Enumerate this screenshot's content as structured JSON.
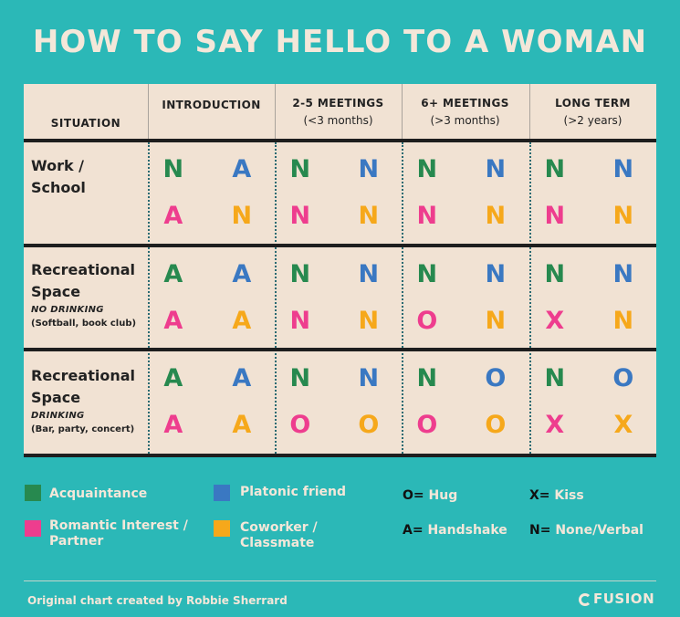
{
  "chart_data": {
    "type": "table",
    "title": "HOW TO SAY HELLO TO A WOMAN",
    "situation_header": "SITUATION",
    "columns": [
      {
        "label": "INTRODUCTION",
        "sub": ""
      },
      {
        "label": "2-5 MEETINGS",
        "sub": "(<3 months)"
      },
      {
        "label": "6+ MEETINGS",
        "sub": "(>3 months)"
      },
      {
        "label": "LONG TERM",
        "sub": "(>2 years)"
      }
    ],
    "rows": [
      {
        "label_lines": [
          "Work /",
          "School"
        ],
        "note1": "",
        "note2": "",
        "cells": [
          [
            "N",
            "A",
            "A",
            "N"
          ],
          [
            "N",
            "N",
            "N",
            "N"
          ],
          [
            "N",
            "N",
            "N",
            "N"
          ],
          [
            "N",
            "N",
            "N",
            "N"
          ]
        ]
      },
      {
        "label_lines": [
          "Recreational",
          "Space"
        ],
        "note1": "NO DRINKING",
        "note2": "(Softball, book club)",
        "cells": [
          [
            "A",
            "A",
            "A",
            "A"
          ],
          [
            "N",
            "N",
            "N",
            "N"
          ],
          [
            "N",
            "N",
            "O",
            "N"
          ],
          [
            "N",
            "N",
            "X",
            "N"
          ]
        ]
      },
      {
        "label_lines": [
          "Recreational",
          "Space"
        ],
        "note1": "DRINKING",
        "note2": "(Bar, party, concert)",
        "cells": [
          [
            "A",
            "A",
            "A",
            "A"
          ],
          [
            "N",
            "N",
            "O",
            "O"
          ],
          [
            "N",
            "O",
            "O",
            "O"
          ],
          [
            "N",
            "O",
            "X",
            "X"
          ]
        ]
      }
    ],
    "quadrant_order": [
      "acquaintance",
      "platonic",
      "romantic",
      "coworker"
    ],
    "categories": {
      "acquaintance": {
        "label": "Acquaintance",
        "color": "#27894f"
      },
      "platonic": {
        "label": "Platonic friend",
        "color": "#3a78c2"
      },
      "romantic": {
        "label": "Romantic Interest / Partner",
        "color": "#ee3d8e"
      },
      "coworker": {
        "label": "Coworker / Classmate",
        "color": "#f6a81b"
      }
    },
    "key": [
      {
        "letter": "O=",
        "meaning": "Hug"
      },
      {
        "letter": "X=",
        "meaning": "Kiss"
      },
      {
        "letter": "A=",
        "meaning": "Handshake"
      },
      {
        "letter": "N=",
        "meaning": "None/Verbal"
      }
    ]
  },
  "footer": {
    "credit": "Original chart created by Robbie Sherrard",
    "brand": "FUSION"
  }
}
